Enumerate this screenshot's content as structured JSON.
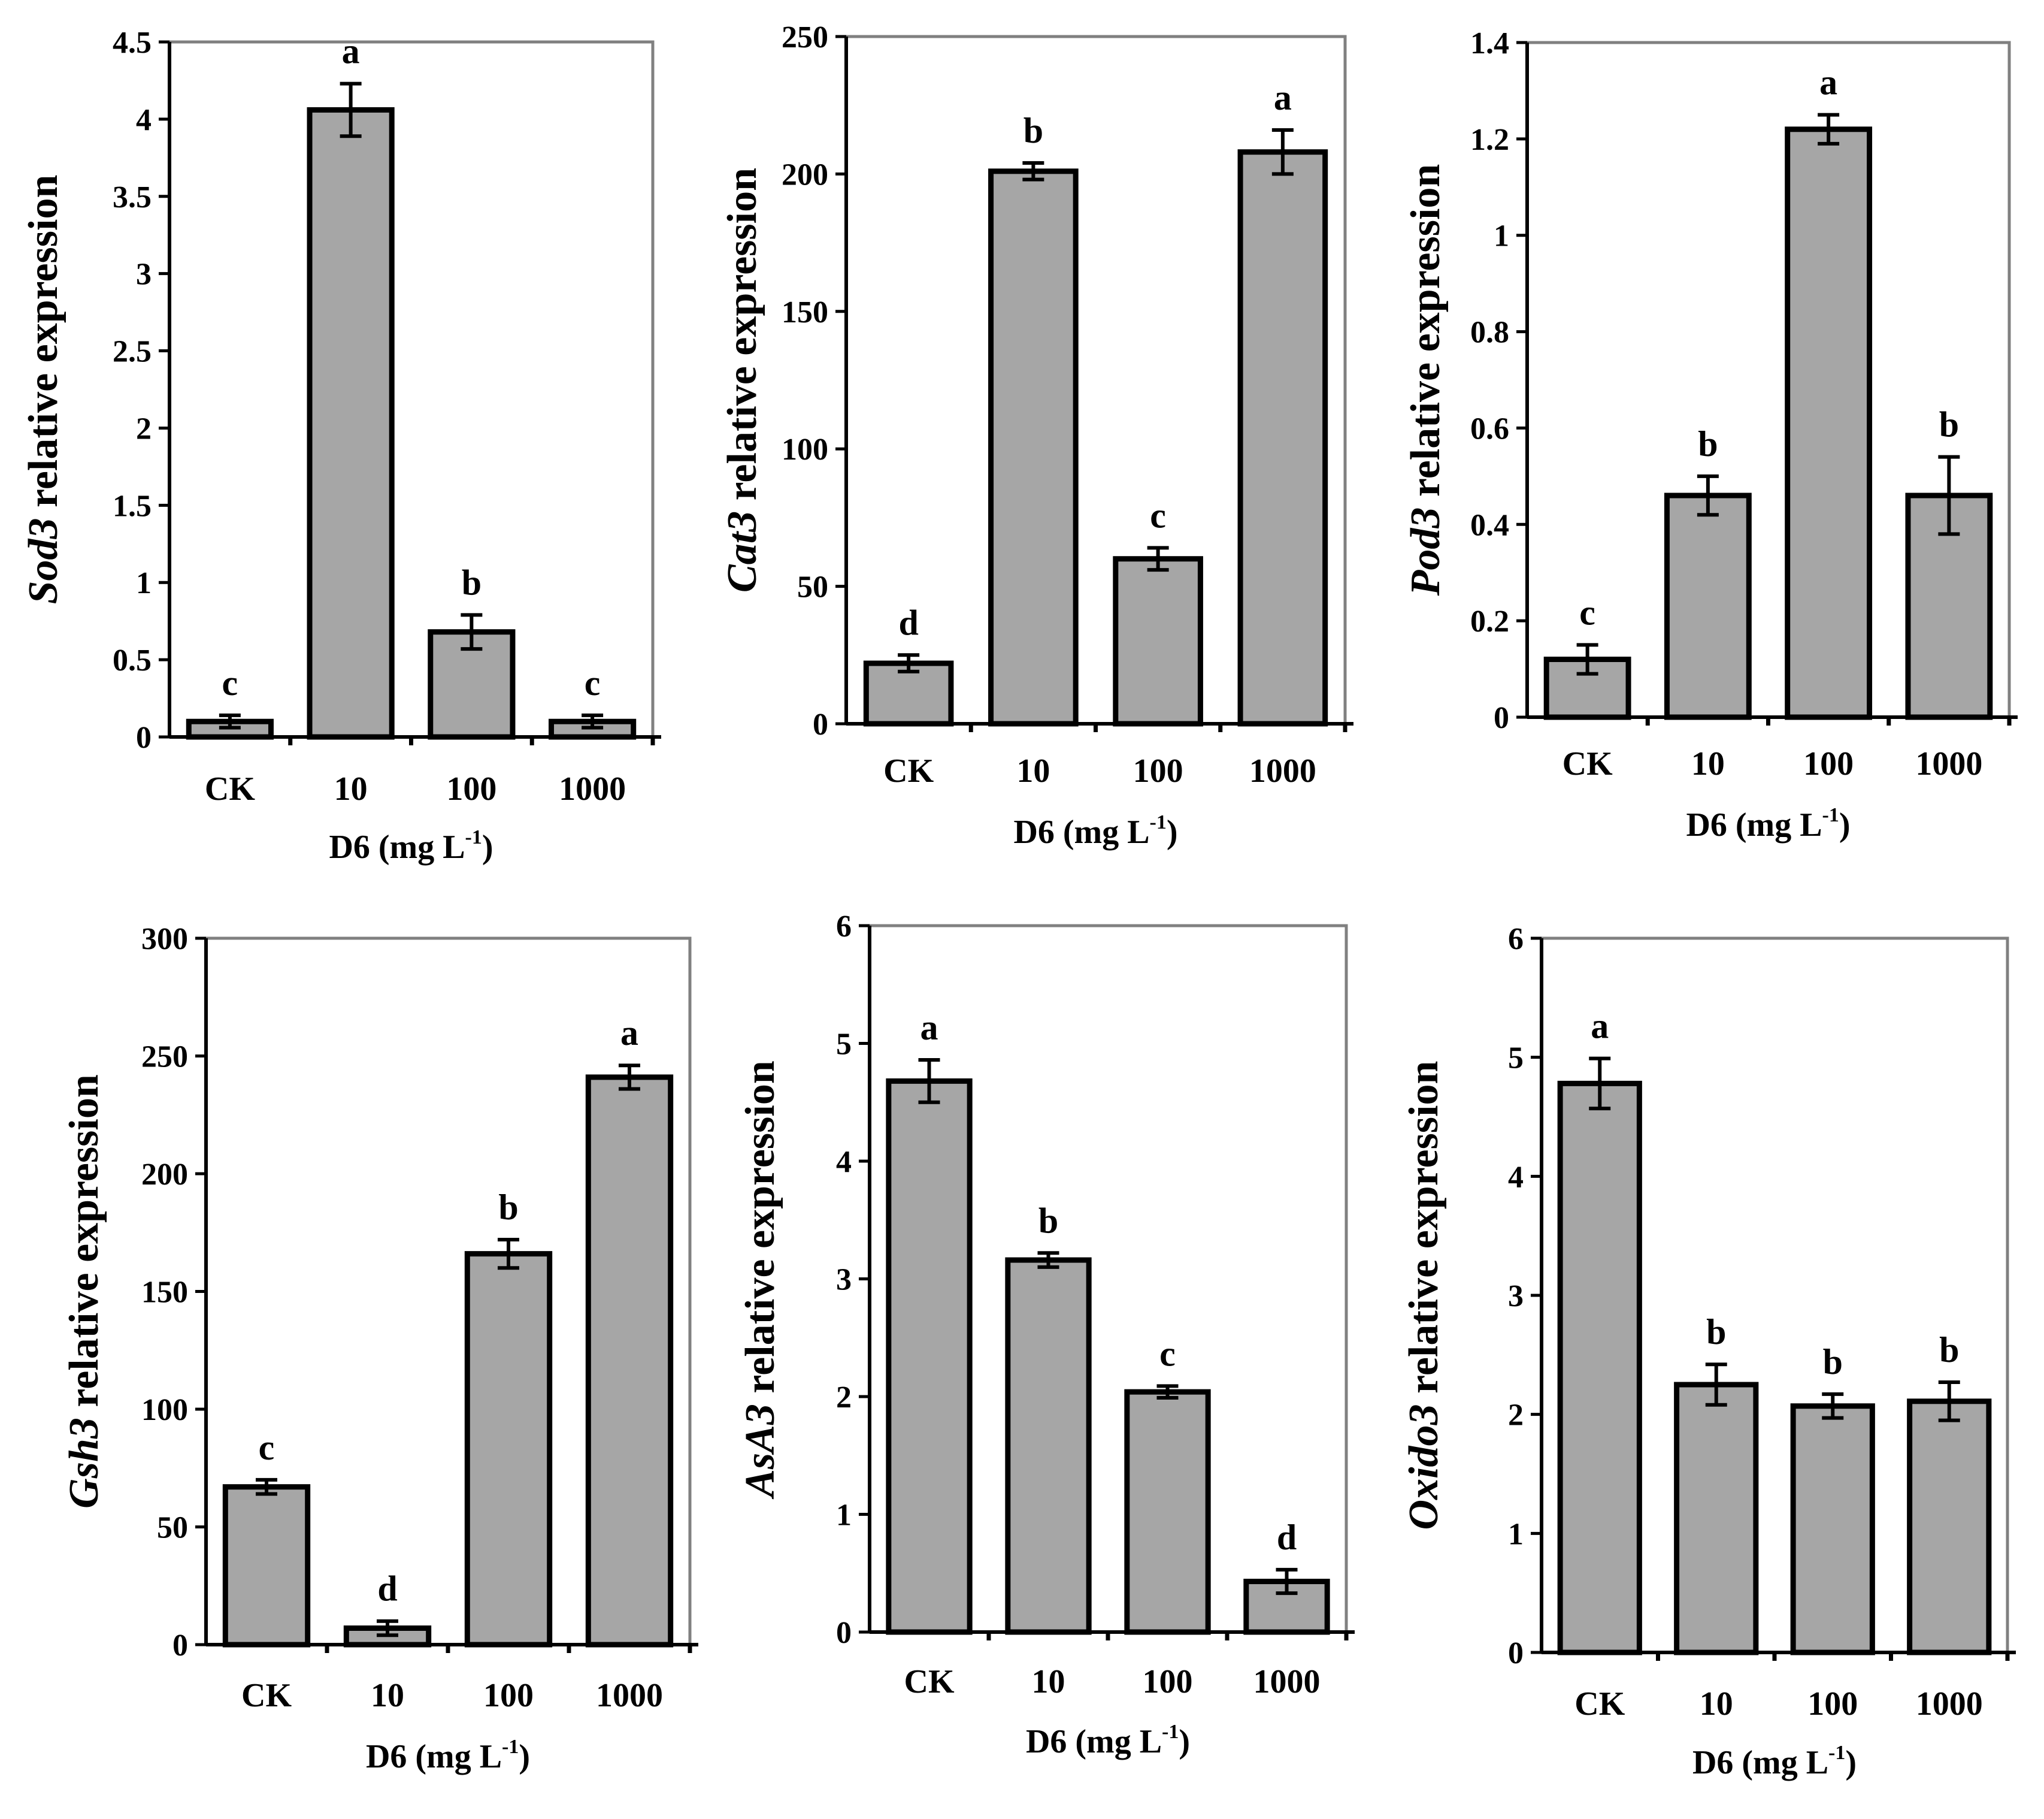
{
  "colors": {
    "bar_fill": "#a6a6a6",
    "bar_stroke": "#000000",
    "frame": "#808080",
    "axis": "#000000"
  },
  "chart_data": [
    {
      "type": "bar",
      "categories": [
        "CK",
        "10",
        "100",
        "1000"
      ],
      "values": [
        0.1,
        4.06,
        0.68,
        0.1
      ],
      "errors": [
        0.04,
        0.17,
        0.11,
        0.04
      ],
      "significance": [
        "c",
        "a",
        "b",
        "c"
      ],
      "ylim": [
        0,
        4.5
      ],
      "yticks": [
        "0",
        "0.5",
        "1",
        "1.5",
        "2",
        "2.5",
        "3",
        "3.5",
        "4",
        "4.5"
      ],
      "ylabel_gene": "Sod3",
      "ylabel_rest": " relative expression",
      "xlabel_main": "D6 (mg L",
      "xlabel_sup": "-1",
      "xlabel_end": ")"
    },
    {
      "type": "bar",
      "categories": [
        "CK",
        "10",
        "100",
        "1000"
      ],
      "values": [
        22,
        201,
        60,
        208
      ],
      "errors": [
        3,
        3,
        4,
        8
      ],
      "significance": [
        "d",
        "b",
        "c",
        "a"
      ],
      "ylim": [
        0,
        250
      ],
      "yticks": [
        "0",
        "50",
        "100",
        "150",
        "200",
        "250"
      ],
      "ylabel_gene": "Cat3",
      "ylabel_rest": " relative expression",
      "xlabel_main": "D6 (mg L",
      "xlabel_sup": "-1",
      "xlabel_end": ")"
    },
    {
      "type": "bar",
      "categories": [
        "CK",
        "10",
        "100",
        "1000"
      ],
      "values": [
        0.12,
        0.46,
        1.22,
        0.46
      ],
      "errors": [
        0.03,
        0.04,
        0.03,
        0.08
      ],
      "significance": [
        "c",
        "b",
        "a",
        "b"
      ],
      "ylim": [
        0,
        1.4
      ],
      "yticks": [
        "0",
        "0.2",
        "0.4",
        "0.6",
        "0.8",
        "1",
        "1.2",
        "1.4"
      ],
      "ylabel_gene": "Pod3",
      "ylabel_rest": " relative expression",
      "xlabel_main": "D6 (mg L",
      "xlabel_sup": "-1",
      "xlabel_end": ")"
    },
    {
      "type": "bar",
      "categories": [
        "CK",
        "10",
        "100",
        "1000"
      ],
      "values": [
        67,
        7,
        166,
        241
      ],
      "errors": [
        3,
        3,
        6,
        5
      ],
      "significance": [
        "c",
        "d",
        "b",
        "a"
      ],
      "ylim": [
        0,
        300
      ],
      "yticks": [
        "0",
        "50",
        "100",
        "150",
        "200",
        "250",
        "300"
      ],
      "ylabel_gene": "Gsh3",
      "ylabel_rest": " relative expression",
      "xlabel_main": "D6 (mg L",
      "xlabel_sup": "-1",
      "xlabel_end": ")"
    },
    {
      "type": "bar",
      "categories": [
        "CK",
        "10",
        "100",
        "1000"
      ],
      "values": [
        4.68,
        3.16,
        2.04,
        0.43
      ],
      "errors": [
        0.18,
        0.06,
        0.05,
        0.1
      ],
      "significance": [
        "a",
        "b",
        "c",
        "d"
      ],
      "ylim": [
        0,
        6
      ],
      "yticks": [
        "0",
        "1",
        "2",
        "3",
        "4",
        "5",
        "6"
      ],
      "ylabel_gene": "AsA3",
      "ylabel_rest": " relative expression",
      "xlabel_main": "D6 (mg L",
      "xlabel_sup": "-1",
      "xlabel_end": ")"
    },
    {
      "type": "bar",
      "categories": [
        "CK",
        "10",
        "100",
        "1000"
      ],
      "values": [
        4.78,
        2.25,
        2.07,
        2.11
      ],
      "errors": [
        0.21,
        0.17,
        0.1,
        0.16
      ],
      "significance": [
        "a",
        "b",
        "b",
        "b"
      ],
      "ylim": [
        0,
        6
      ],
      "yticks": [
        "0",
        "1",
        "2",
        "3",
        "4",
        "5",
        "6"
      ],
      "ylabel_gene": "Oxido3",
      "ylabel_rest": " relative expression",
      "xlabel_main": "D6 (mg L",
      "xlabel_sup": "-1",
      "xlabel_end": ")"
    }
  ]
}
